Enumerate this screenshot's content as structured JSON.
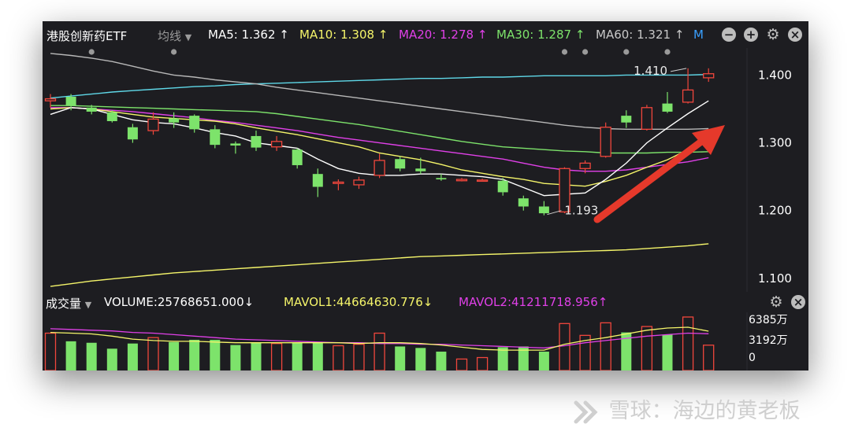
{
  "toolbar": {
    "symbol": "港股创新药ETF",
    "indicator": "均线",
    "ma": [
      {
        "label": "MA5: 1.362 ↑",
        "color": "#ffffff"
      },
      {
        "label": "MA10: 1.308 ↑",
        "color": "#f5f56a"
      },
      {
        "label": "MA20: 1.278 ↑",
        "color": "#e040e8"
      },
      {
        "label": "MA30: 1.287 ↑",
        "color": "#7de36b"
      },
      {
        "label": "MA60: 1.321 ↑",
        "color": "#c8c8c8"
      }
    ],
    "more_label": "M",
    "icons": [
      "minus-circle-icon",
      "plus-circle-icon",
      "gear-icon",
      "close-icon"
    ]
  },
  "volume_bar": {
    "title": "成交量",
    "volume": "VOLUME:25768651.000↓",
    "mavol1": "MAVOL1:44664630.776↓",
    "mavol2": "MAVOL2:41211718.956↑",
    "icons": [
      "gear-icon",
      "close-icon"
    ]
  },
  "watermark": {
    "brand": "雪球",
    "separator": "：",
    "author": "海边的黄老板"
  },
  "colors": {
    "up": "#f0463c",
    "down": "#7de36b",
    "ma5": "#ffffff",
    "ma10": "#f5f56a",
    "ma20": "#e040e8",
    "ma30": "#7de36b",
    "ma60": "#b8b8b8",
    "cyan": "#5fd8e8",
    "arrow": "#e5392b"
  },
  "chart_data": [
    {
      "type": "candlestick",
      "ylim": [
        1.08,
        1.44
      ],
      "y_ticks": [
        "1.400",
        "1.300",
        "1.200",
        "1.100"
      ],
      "annotations": {
        "high": "1.410",
        "low": "1.193"
      },
      "candles": [
        {
          "o": 1.362,
          "h": 1.372,
          "l": 1.352,
          "c": 1.365
        },
        {
          "o": 1.368,
          "h": 1.372,
          "l": 1.348,
          "c": 1.355
        },
        {
          "o": 1.352,
          "h": 1.356,
          "l": 1.342,
          "c": 1.346
        },
        {
          "o": 1.345,
          "h": 1.348,
          "l": 1.33,
          "c": 1.332
        },
        {
          "o": 1.323,
          "h": 1.328,
          "l": 1.3,
          "c": 1.305
        },
        {
          "o": 1.318,
          "h": 1.345,
          "l": 1.312,
          "c": 1.335
        },
        {
          "o": 1.336,
          "h": 1.345,
          "l": 1.322,
          "c": 1.33
        },
        {
          "o": 1.34,
          "h": 1.342,
          "l": 1.315,
          "c": 1.32
        },
        {
          "o": 1.32,
          "h": 1.326,
          "l": 1.292,
          "c": 1.297
        },
        {
          "o": 1.299,
          "h": 1.302,
          "l": 1.284,
          "c": 1.296
        },
        {
          "o": 1.31,
          "h": 1.318,
          "l": 1.288,
          "c": 1.293
        },
        {
          "o": 1.294,
          "h": 1.31,
          "l": 1.288,
          "c": 1.302
        },
        {
          "o": 1.29,
          "h": 1.292,
          "l": 1.262,
          "c": 1.267
        },
        {
          "o": 1.254,
          "h": 1.262,
          "l": 1.22,
          "c": 1.235
        },
        {
          "o": 1.24,
          "h": 1.246,
          "l": 1.23,
          "c": 1.242
        },
        {
          "o": 1.238,
          "h": 1.25,
          "l": 1.232,
          "c": 1.245
        },
        {
          "o": 1.252,
          "h": 1.284,
          "l": 1.248,
          "c": 1.274
        },
        {
          "o": 1.276,
          "h": 1.28,
          "l": 1.258,
          "c": 1.262
        },
        {
          "o": 1.262,
          "h": 1.278,
          "l": 1.254,
          "c": 1.258
        },
        {
          "o": 1.248,
          "h": 1.254,
          "l": 1.244,
          "c": 1.246
        },
        {
          "o": 1.244,
          "h": 1.248,
          "l": 1.243,
          "c": 1.246
        },
        {
          "o": 1.244,
          "h": 1.247,
          "l": 1.243,
          "c": 1.245
        },
        {
          "o": 1.244,
          "h": 1.248,
          "l": 1.222,
          "c": 1.227
        },
        {
          "o": 1.218,
          "h": 1.222,
          "l": 1.2,
          "c": 1.206
        },
        {
          "o": 1.206,
          "h": 1.214,
          "l": 1.193,
          "c": 1.196
        },
        {
          "o": 1.198,
          "h": 1.264,
          "l": 1.196,
          "c": 1.262
        },
        {
          "o": 1.262,
          "h": 1.274,
          "l": 1.255,
          "c": 1.27
        },
        {
          "o": 1.28,
          "h": 1.33,
          "l": 1.278,
          "c": 1.323
        },
        {
          "o": 1.34,
          "h": 1.348,
          "l": 1.322,
          "c": 1.33
        },
        {
          "o": 1.32,
          "h": 1.356,
          "l": 1.318,
          "c": 1.352
        },
        {
          "o": 1.358,
          "h": 1.375,
          "l": 1.344,
          "c": 1.346
        },
        {
          "o": 1.36,
          "h": 1.41,
          "l": 1.358,
          "c": 1.378
        },
        {
          "o": 1.396,
          "h": 1.41,
          "l": 1.39,
          "c": 1.402
        }
      ],
      "ma_lines": {
        "ma5": [
          1.342,
          1.352,
          1.35,
          1.342,
          1.334,
          1.33,
          1.328,
          1.322,
          1.315,
          1.31,
          1.3,
          1.296,
          1.292,
          1.276,
          1.262,
          1.255,
          1.252,
          1.252,
          1.254,
          1.254,
          1.252,
          1.25,
          1.246,
          1.234,
          1.222,
          1.224,
          1.226,
          1.246,
          1.27,
          1.3,
          1.322,
          1.343,
          1.362
        ],
        "ma10": [
          1.35,
          1.352,
          1.35,
          1.346,
          1.342,
          1.338,
          1.336,
          1.334,
          1.332,
          1.328,
          1.322,
          1.317,
          1.312,
          1.306,
          1.3,
          1.294,
          1.285,
          1.28,
          1.275,
          1.268,
          1.26,
          1.255,
          1.25,
          1.246,
          1.24,
          1.238,
          1.236,
          1.243,
          1.252,
          1.264,
          1.275,
          1.29,
          1.308
        ],
        "ma20": [
          1.352,
          1.352,
          1.35,
          1.348,
          1.346,
          1.343,
          1.34,
          1.337,
          1.333,
          1.33,
          1.326,
          1.322,
          1.318,
          1.313,
          1.308,
          1.304,
          1.3,
          1.296,
          1.292,
          1.288,
          1.284,
          1.28,
          1.276,
          1.27,
          1.264,
          1.26,
          1.258,
          1.258,
          1.26,
          1.264,
          1.268,
          1.272,
          1.278
        ],
        "ma30": [
          1.355,
          1.355,
          1.354,
          1.353,
          1.352,
          1.351,
          1.35,
          1.349,
          1.348,
          1.347,
          1.346,
          1.343,
          1.339,
          1.335,
          1.331,
          1.327,
          1.322,
          1.317,
          1.312,
          1.307,
          1.302,
          1.298,
          1.294,
          1.292,
          1.29,
          1.288,
          1.287,
          1.285,
          1.285,
          1.285,
          1.286,
          1.286,
          1.287
        ],
        "ma60": [
          1.432,
          1.429,
          1.425,
          1.42,
          1.413,
          1.406,
          1.4,
          1.397,
          1.393,
          1.39,
          1.387,
          1.382,
          1.378,
          1.374,
          1.37,
          1.366,
          1.362,
          1.358,
          1.354,
          1.35,
          1.346,
          1.342,
          1.338,
          1.334,
          1.33,
          1.326,
          1.323,
          1.321,
          1.32,
          1.32,
          1.32,
          1.32,
          1.321
        ],
        "cyan": [
          1.366,
          1.369,
          1.372,
          1.375,
          1.377,
          1.379,
          1.381,
          1.383,
          1.384,
          1.386,
          1.387,
          1.388,
          1.389,
          1.39,
          1.391,
          1.392,
          1.393,
          1.394,
          1.395,
          1.395,
          1.396,
          1.397,
          1.397,
          1.398,
          1.399,
          1.399,
          1.399,
          1.399,
          1.4,
          1.4,
          1.4,
          1.4,
          1.401
        ],
        "long": [
          1.088,
          1.092,
          1.096,
          1.099,
          1.102,
          1.105,
          1.108,
          1.11,
          1.112,
          1.114,
          1.116,
          1.118,
          1.12,
          1.122,
          1.124,
          1.126,
          1.128,
          1.13,
          1.132,
          1.133,
          1.134,
          1.135,
          1.136,
          1.137,
          1.138,
          1.139,
          1.14,
          1.141,
          1.142,
          1.144,
          1.146,
          1.148,
          1.151
        ]
      },
      "markers": [
        2,
        6,
        25,
        26,
        28,
        30
      ]
    },
    {
      "type": "bar",
      "title": "成交量",
      "ylim": [
        0,
        6385
      ],
      "y_ticks": [
        "6385万",
        "3192万",
        "0"
      ],
      "volumes": [
        4200,
        3100,
        2900,
        2100,
        2800,
        3600,
        3000,
        3300,
        3300,
        2600,
        2900,
        2800,
        2900,
        2900,
        2500,
        2700,
        4200,
        2400,
        2200,
        1700,
        700,
        900,
        2300,
        2400,
        1700,
        5500,
        3900,
        5600,
        4300,
        5100,
        4000,
        6385,
        2577
      ],
      "mavol1": [
        4300,
        4200,
        4100,
        3800,
        3400,
        3200,
        3100,
        3100,
        3000,
        2900,
        2900,
        2900,
        2900,
        2900,
        2900,
        2800,
        2900,
        2900,
        2800,
        2600,
        2300,
        2000,
        1900,
        1900,
        1900,
        2700,
        3200,
        3600,
        4100,
        4600,
        4900,
        5000,
        4466
      ],
      "mavol2": [
        4800,
        4700,
        4600,
        4500,
        4300,
        4200,
        4000,
        3800,
        3600,
        3400,
        3300,
        3200,
        3100,
        3000,
        2900,
        2900,
        2800,
        2800,
        2700,
        2700,
        2600,
        2500,
        2400,
        2300,
        2200,
        2500,
        2900,
        3200,
        3500,
        3800,
        4000,
        4200,
        4121
      ]
    }
  ]
}
